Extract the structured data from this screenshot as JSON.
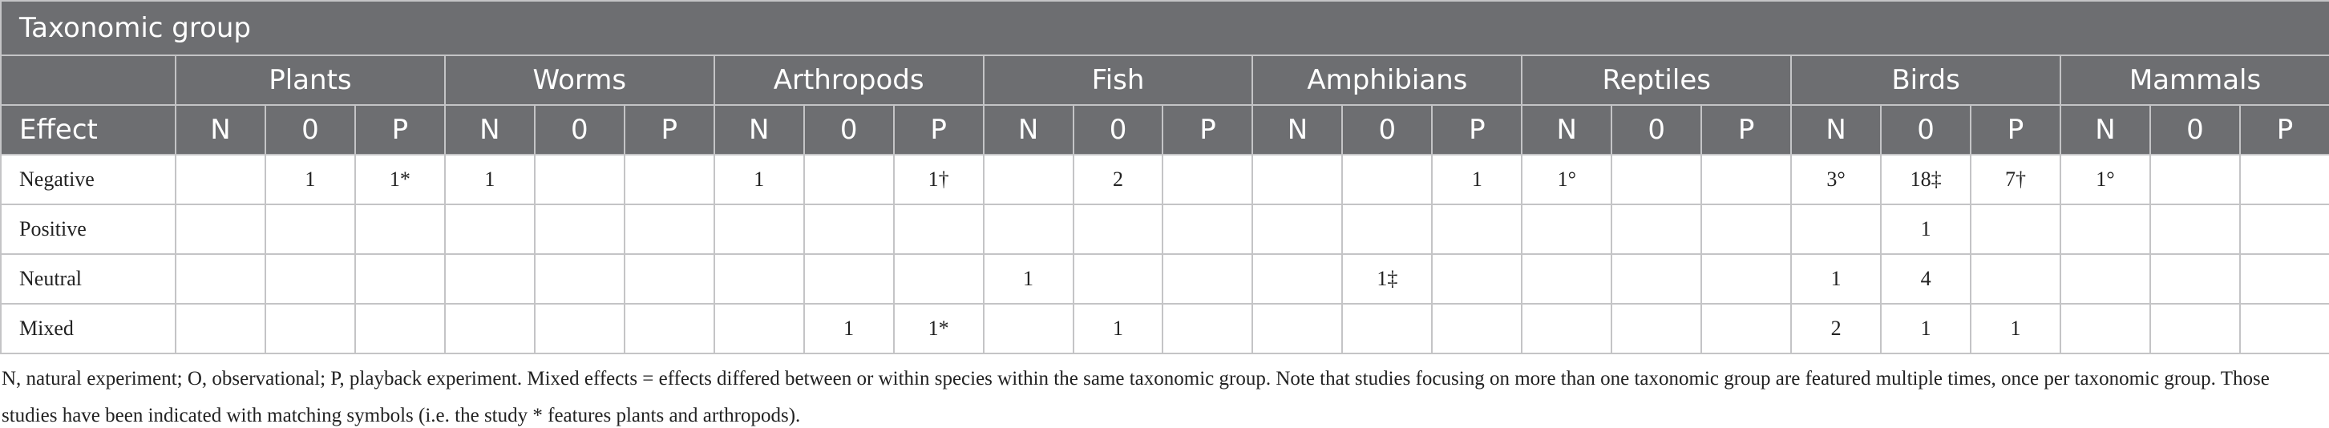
{
  "table": {
    "title": "Taxonomic group",
    "groups": [
      "Plants",
      "Worms",
      "Arthropods",
      "Fish",
      "Amphibians",
      "Reptiles",
      "Birds",
      "Mammals"
    ],
    "row_header": "Effect",
    "subcolumns": [
      "N",
      "0",
      "P"
    ],
    "rows": [
      {
        "label": "Negative",
        "cells": [
          null,
          "1",
          "1*",
          "1",
          null,
          null,
          "1",
          null,
          "1†",
          null,
          "2",
          null,
          null,
          null,
          "1",
          "1°",
          null,
          null,
          "3°",
          "18‡",
          "7†",
          "1°",
          null,
          null
        ]
      },
      {
        "label": "Positive",
        "cells": [
          null,
          null,
          null,
          null,
          null,
          null,
          null,
          null,
          null,
          null,
          null,
          null,
          null,
          null,
          null,
          null,
          null,
          null,
          null,
          "1",
          null,
          null,
          null,
          null
        ]
      },
      {
        "label": "Neutral",
        "cells": [
          null,
          null,
          null,
          null,
          null,
          null,
          null,
          null,
          null,
          "1",
          null,
          null,
          null,
          "1‡",
          null,
          null,
          null,
          null,
          "1",
          "4",
          null,
          null,
          null,
          null
        ]
      },
      {
        "label": "Mixed",
        "cells": [
          null,
          null,
          null,
          null,
          null,
          null,
          null,
          "1",
          "1*",
          null,
          "1",
          null,
          null,
          null,
          null,
          null,
          null,
          null,
          "2",
          "1",
          "1",
          null,
          null,
          null
        ]
      }
    ]
  },
  "footnote": "N, natural experiment; O, observational; P, playback experiment. Mixed effects = effects differed between or within species within the same taxonomic group. Note that studies focusing on more than one taxonomic group are featured multiple times, once per taxonomic group. Those studies have been indicated with matching symbols (i.e. the study * features plants and arthropods)."
}
